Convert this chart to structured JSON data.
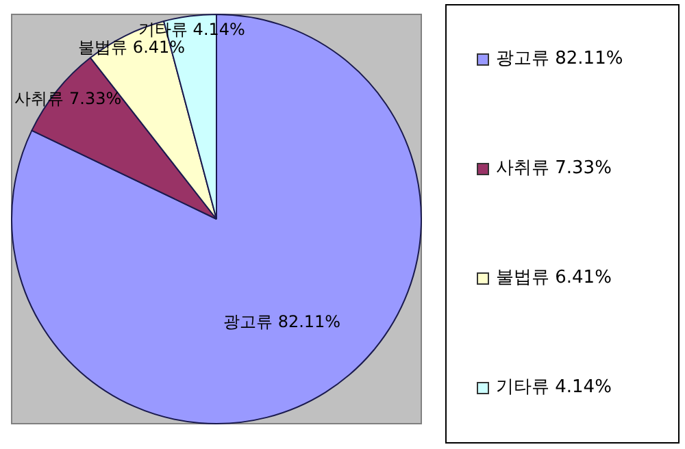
{
  "chart_data": {
    "type": "pie",
    "categories": [
      "광고류",
      "사취류",
      "불법류",
      "기타류"
    ],
    "values": [
      82.11,
      7.33,
      6.41,
      4.14
    ],
    "value_labels": [
      "82.11%",
      "7.33%",
      "6.41%",
      "4.14%"
    ],
    "colors": [
      "#9999ff",
      "#993366",
      "#ffffcc",
      "#ccffff"
    ],
    "legend": "right"
  }
}
